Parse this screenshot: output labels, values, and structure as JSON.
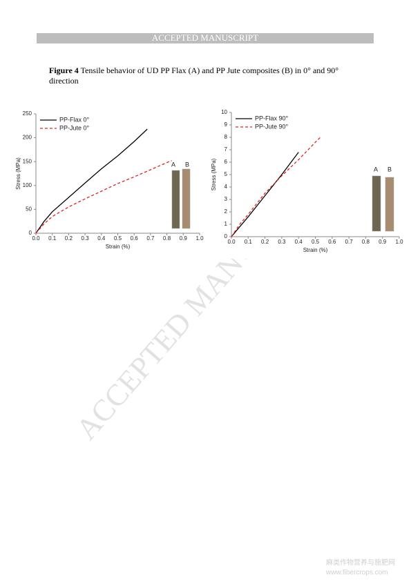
{
  "header": {
    "banner": "ACCEPTED MANUSCRIPT"
  },
  "caption": {
    "label": "Figure 4",
    "text": "Tensile behavior of UD PP Flax (A) and PP Jute composites (B) in 0° and 90° direction"
  },
  "watermark": "ACCEPTED MANUSCRIPT",
  "site_watermark": {
    "name": "麻类作物营养与施肥网",
    "url": "www.fibercrops.com"
  },
  "chart_data": [
    {
      "type": "line",
      "x_label": "Strain (%)",
      "y_label": "Stress (MPa)",
      "legend": "upper left",
      "xlim": [
        0,
        1
      ],
      "xticks": [
        {
          "value": 0,
          "label": "0.0"
        },
        0.1,
        0.2,
        0.3,
        0.4,
        0.5,
        0.6,
        0.7,
        0.8,
        0.9,
        {
          "value": 1,
          "label": "1.0"
        }
      ],
      "ylim": [
        0,
        250
      ],
      "yticks": [
        0,
        50,
        100,
        150,
        200,
        250
      ],
      "grid": false,
      "specimen_labels": [
        "A",
        "B"
      ],
      "series": [
        {
          "name": "PP-Flax 0°",
          "color": "#000000",
          "dash": false,
          "x": [
            0,
            0.05,
            0.1,
            0.2,
            0.3,
            0.4,
            0.5,
            0.6,
            0.68
          ],
          "values": [
            0,
            25,
            45,
            75,
            105,
            135,
            162,
            192,
            218
          ]
        },
        {
          "name": "PP-Jute 0°",
          "color": "#e02020",
          "dash": true,
          "x": [
            0,
            0.05,
            0.1,
            0.2,
            0.3,
            0.4,
            0.5,
            0.6,
            0.7,
            0.8,
            0.83
          ],
          "values": [
            0,
            20,
            35,
            55,
            72,
            88,
            104,
            118,
            133,
            148,
            152
          ]
        }
      ]
    },
    {
      "type": "line",
      "x_label": "Strain (%)",
      "y_label": "Stress (MPa)",
      "legend": "upper left",
      "xlim": [
        0,
        1
      ],
      "xticks": [
        {
          "value": 0,
          "label": "0.0"
        },
        0.1,
        0.2,
        0.3,
        0.4,
        0.5,
        0.6,
        0.7,
        0.8,
        0.9,
        {
          "value": 1,
          "label": "1.0"
        }
      ],
      "ylim": [
        0,
        10
      ],
      "yticks": [
        0,
        1,
        2,
        3,
        4,
        5,
        6,
        7,
        8,
        9,
        10
      ],
      "grid": false,
      "specimen_labels": [
        "A",
        "B"
      ],
      "series": [
        {
          "name": "PP-Flax 90°",
          "color": "#000000",
          "dash": false,
          "x": [
            0,
            0.05,
            0.1,
            0.2,
            0.3,
            0.4
          ],
          "values": [
            0,
            0.8,
            1.6,
            3.3,
            5.0,
            6.8
          ]
        },
        {
          "name": "PP-Jute 90°",
          "color": "#e02020",
          "dash": true,
          "x": [
            0,
            0.05,
            0.1,
            0.2,
            0.3,
            0.4,
            0.5,
            0.53
          ],
          "values": [
            0,
            1.0,
            1.8,
            3.5,
            4.9,
            6.2,
            7.6,
            8.0
          ]
        }
      ]
    }
  ]
}
